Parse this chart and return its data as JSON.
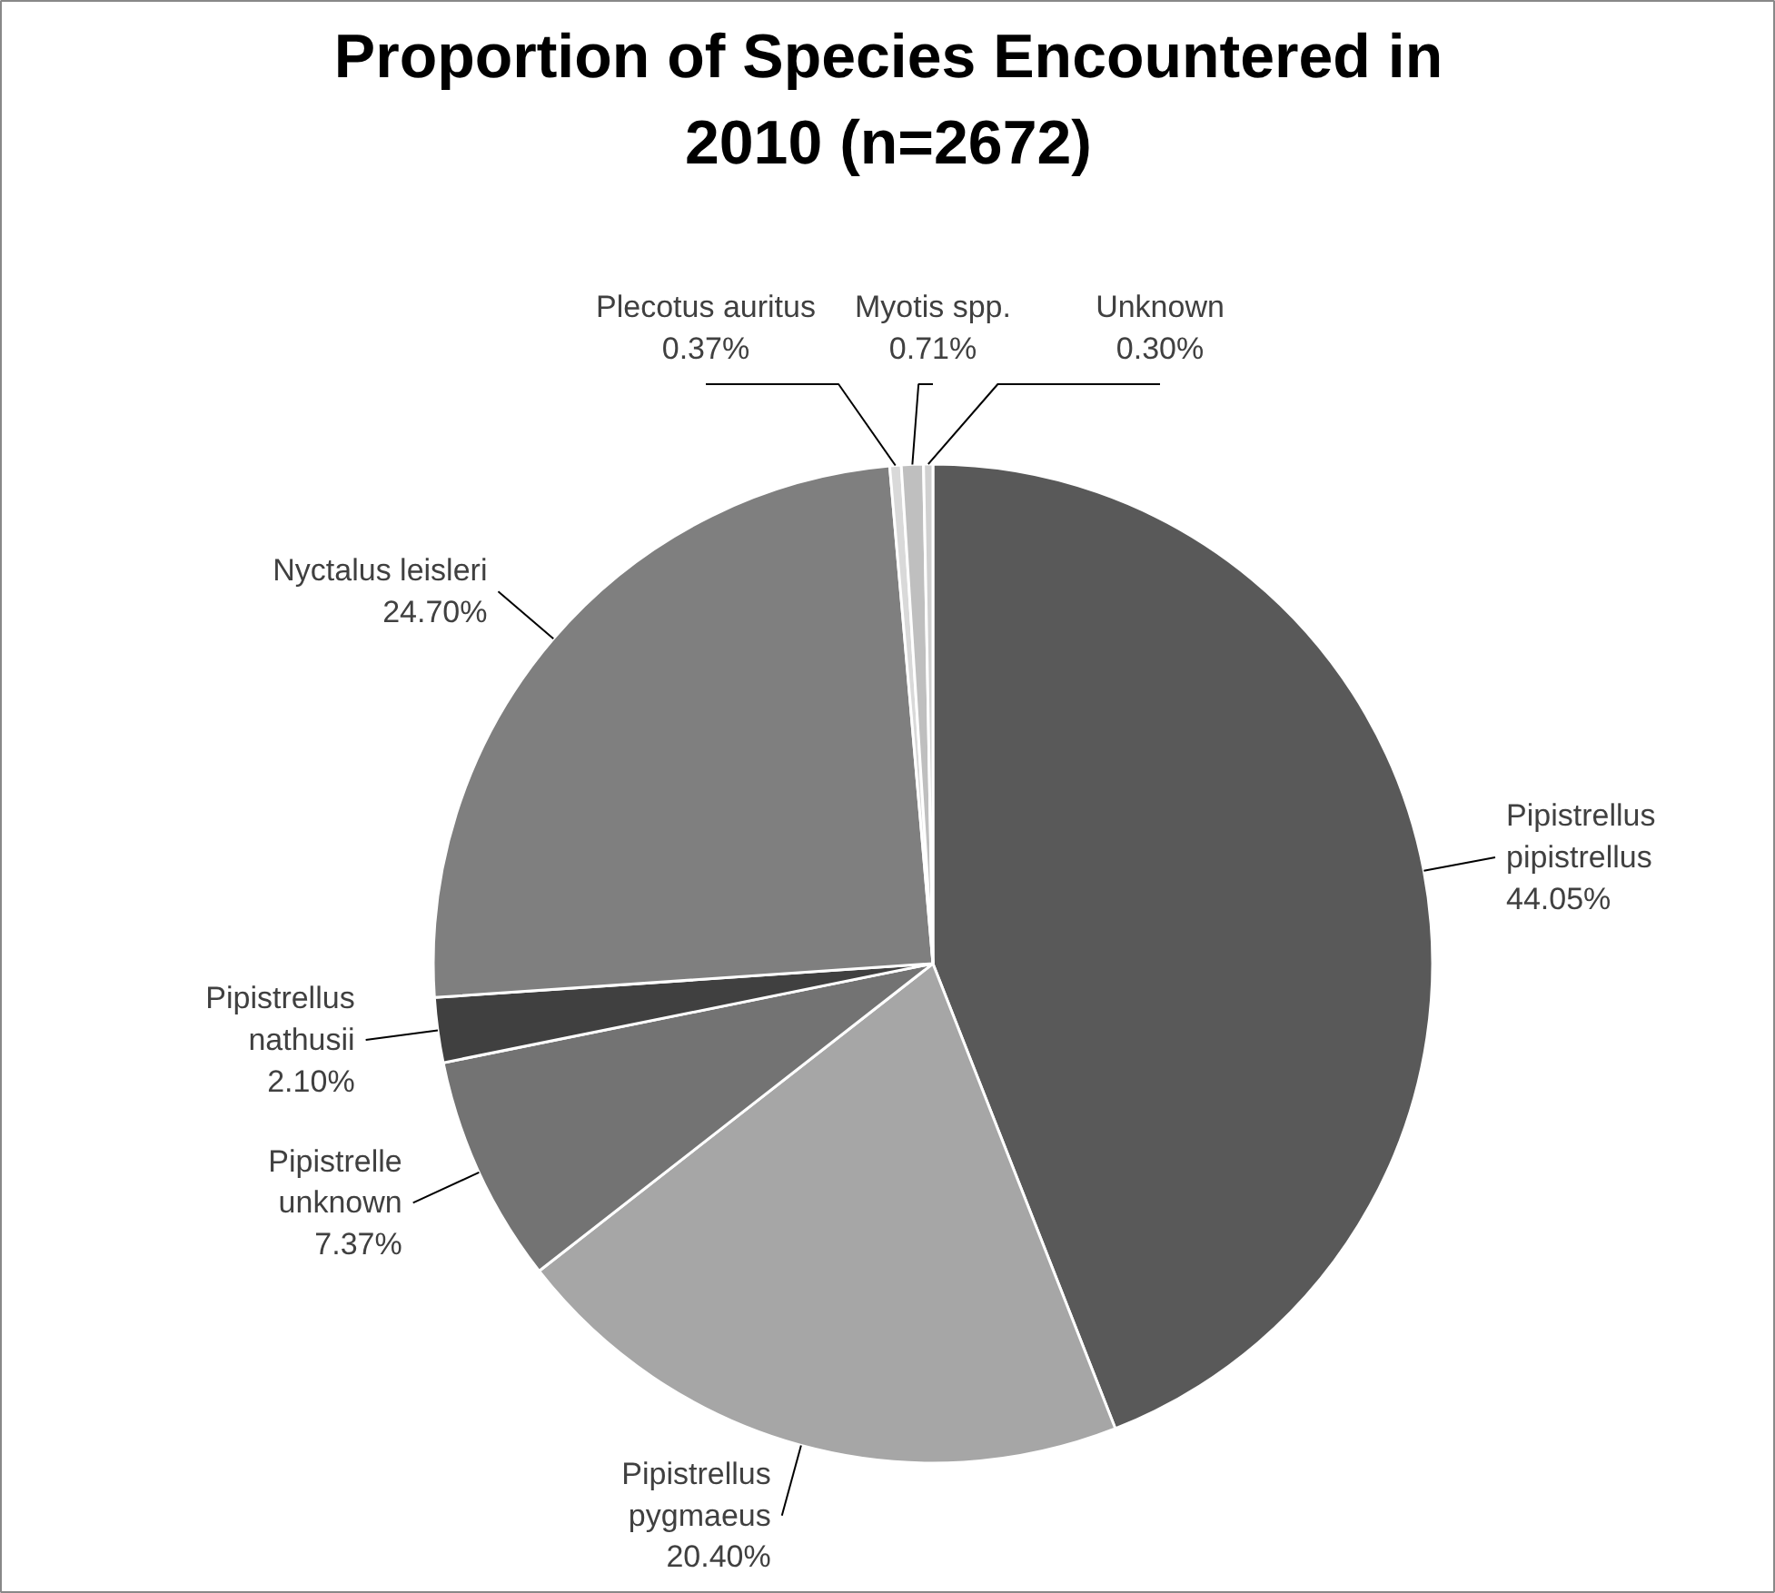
{
  "chart_data": {
    "type": "pie",
    "title": "Proportion of Species Encountered in 2010 (n=2672)",
    "categories": [
      "Pipistrellus pipistrellus",
      "Pipistrellus pygmaeus",
      "Pipistrelle unknown",
      "Pipistrellus nathusii",
      "Nyctalus leisleri",
      "Plecotus auritus",
      "Myotis spp.",
      "Unknown"
    ],
    "values": [
      44.05,
      20.4,
      7.37,
      2.1,
      24.7,
      0.37,
      0.71,
      0.3
    ],
    "colors": [
      "#595959",
      "#a6a6a6",
      "#737373",
      "#404040",
      "#7f7f7f",
      "#d9d9d9",
      "#bfbfbf",
      "#d0d0d0"
    ],
    "value_labels": [
      "44.05%",
      "20.40%",
      "7.37%",
      "2.10%",
      "24.70%",
      "0.37%",
      "0.71%",
      "0.30%"
    ]
  }
}
